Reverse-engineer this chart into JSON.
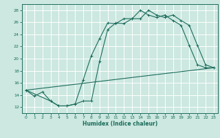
{
  "xlabel": "Humidex (Indice chaleur)",
  "bg_color": "#cce8e0",
  "line_color": "#1a6b5a",
  "grid_color": "#ffffff",
  "xlim": [
    -0.5,
    23.5
  ],
  "ylim": [
    11.0,
    29.0
  ],
  "xticks": [
    0,
    1,
    2,
    3,
    4,
    5,
    6,
    7,
    8,
    9,
    10,
    11,
    12,
    13,
    14,
    15,
    16,
    17,
    18,
    19,
    20,
    21,
    22,
    23
  ],
  "yticks": [
    12,
    14,
    16,
    18,
    20,
    22,
    24,
    26,
    28
  ],
  "line1_x": [
    0,
    1,
    2,
    3,
    4,
    5,
    6,
    7,
    8,
    9,
    10,
    11,
    12,
    13,
    14,
    15,
    16,
    17,
    18,
    19,
    20,
    21,
    22,
    23
  ],
  "line1_y": [
    14.8,
    13.8,
    14.5,
    13.0,
    12.2,
    12.2,
    12.5,
    16.5,
    20.5,
    23.3,
    25.9,
    25.8,
    26.6,
    26.6,
    28.0,
    27.2,
    26.8,
    27.2,
    26.3,
    25.5,
    22.2,
    19.0,
    18.5,
    18.5
  ],
  "line2_x": [
    0,
    3,
    4,
    5,
    6,
    7,
    8,
    9,
    10,
    11,
    12,
    13,
    14,
    15,
    16,
    17,
    18,
    19,
    20,
    21,
    22,
    23
  ],
  "line2_y": [
    14.8,
    13.0,
    12.2,
    12.2,
    12.5,
    13.0,
    13.0,
    19.5,
    24.8,
    25.9,
    25.8,
    26.6,
    26.6,
    28.0,
    27.2,
    26.8,
    27.2,
    26.3,
    25.5,
    22.2,
    19.0,
    18.5
  ],
  "line3_x": [
    0,
    23
  ],
  "line3_y": [
    14.8,
    18.5
  ]
}
